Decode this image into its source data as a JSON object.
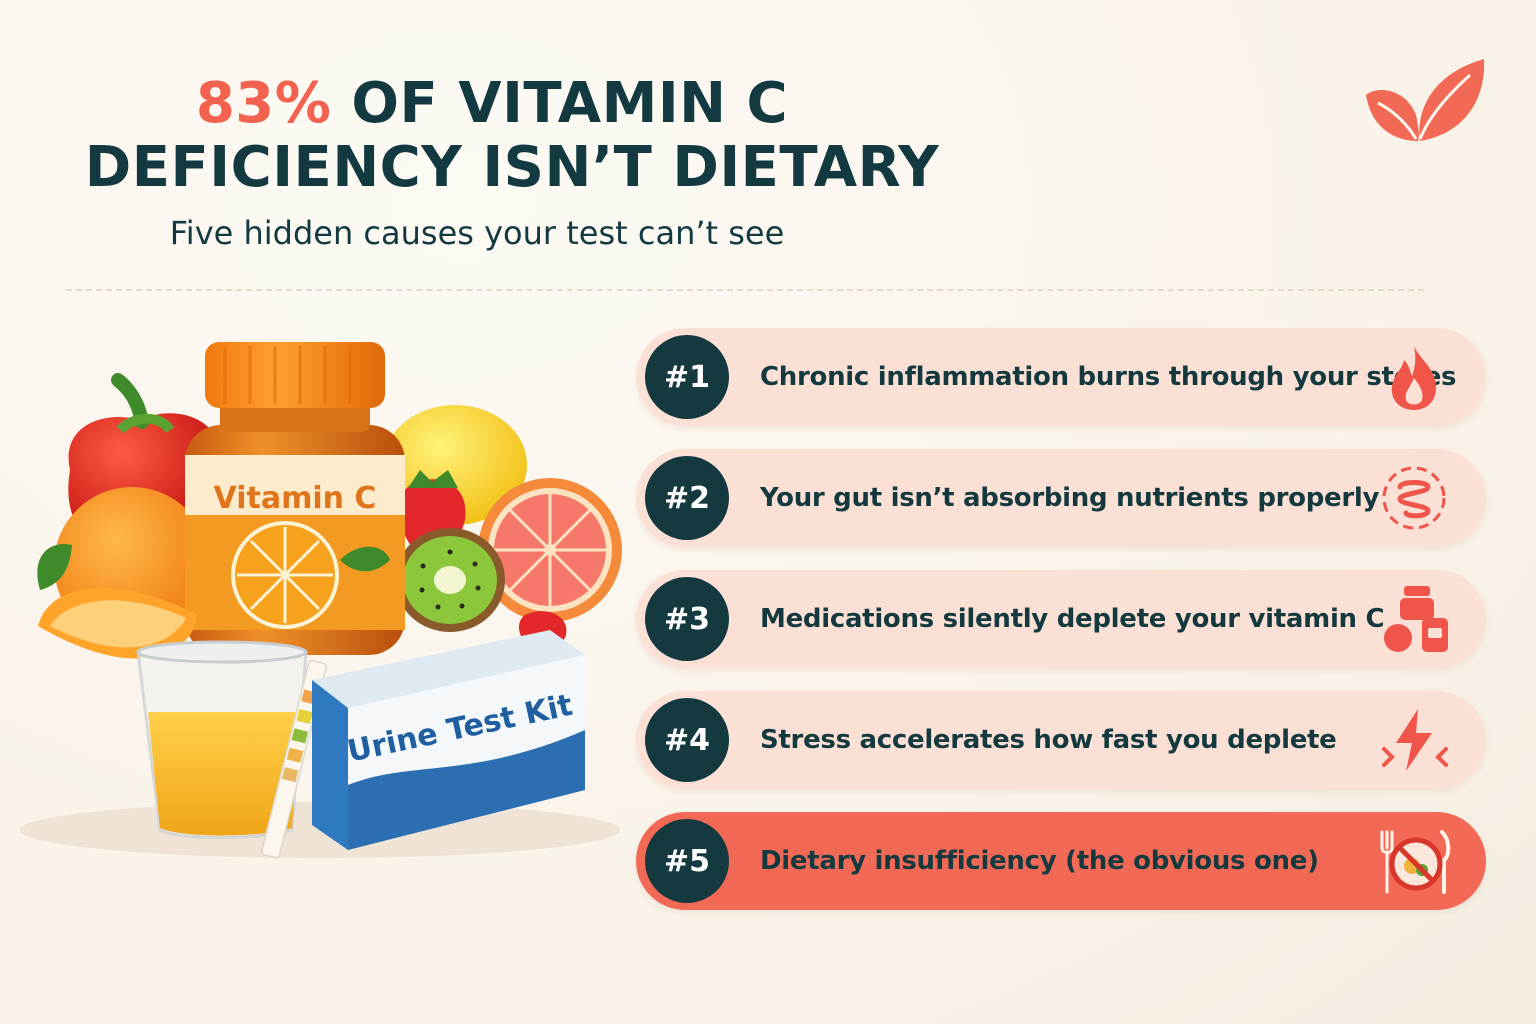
{
  "header": {
    "title_accent": "83%",
    "title_line1_rest": " OF VITAMIN C",
    "title_line2": "DEFICIENCY ISN’T DIETARY",
    "subtitle": "Five hidden causes your test can’t see"
  },
  "illustration": {
    "bottle_label": "Vitamin C",
    "kit_label": "Urine Test Kit"
  },
  "causes": [
    {
      "number": "#1",
      "text": "Chronic inflammation burns through your stores",
      "icon": "flame-icon"
    },
    {
      "number": "#2",
      "text": "Your gut isn’t absorbing nutrients properly",
      "icon": "intestine-icon"
    },
    {
      "number": "#3",
      "text": "Medications silently deplete your vitamin C",
      "icon": "medication-icon"
    },
    {
      "number": "#4",
      "text": "Stress accelerates how fast you deplete",
      "icon": "lightning-icon"
    },
    {
      "number": "#5",
      "text": "Dietary insufficiency (the obvious one)",
      "icon": "no-food-icon"
    }
  ],
  "colors": {
    "navy": "#143a40",
    "accent": "#f2624f",
    "card": "#fbe0d6",
    "card_highlight": "#f26a55"
  }
}
